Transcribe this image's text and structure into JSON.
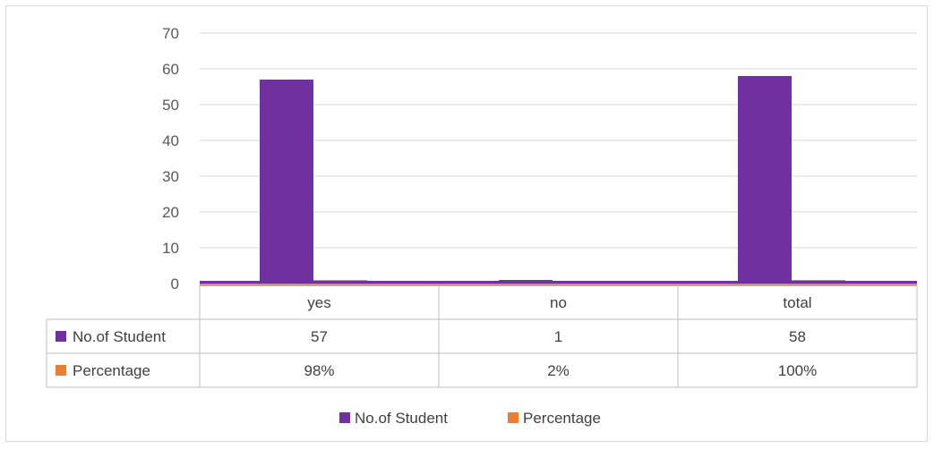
{
  "chart_data": {
    "type": "bar",
    "categories": [
      "yes",
      "no",
      "total"
    ],
    "series": [
      {
        "name": "No.of Student",
        "values": [
          57,
          1,
          58
        ],
        "color": "#7030a0",
        "table_values": [
          "57",
          "1",
          "58"
        ]
      },
      {
        "name": "Percentage",
        "values": [
          0.98,
          0.02,
          1
        ],
        "color": "#ed7d31",
        "table_values": [
          "98%",
          "2%",
          "100%"
        ]
      }
    ],
    "ylim": [
      0,
      70
    ],
    "yticks": [
      0,
      10,
      20,
      30,
      40,
      50,
      60,
      70
    ],
    "grid": true,
    "data_table": true,
    "legend_position": "bottom"
  }
}
